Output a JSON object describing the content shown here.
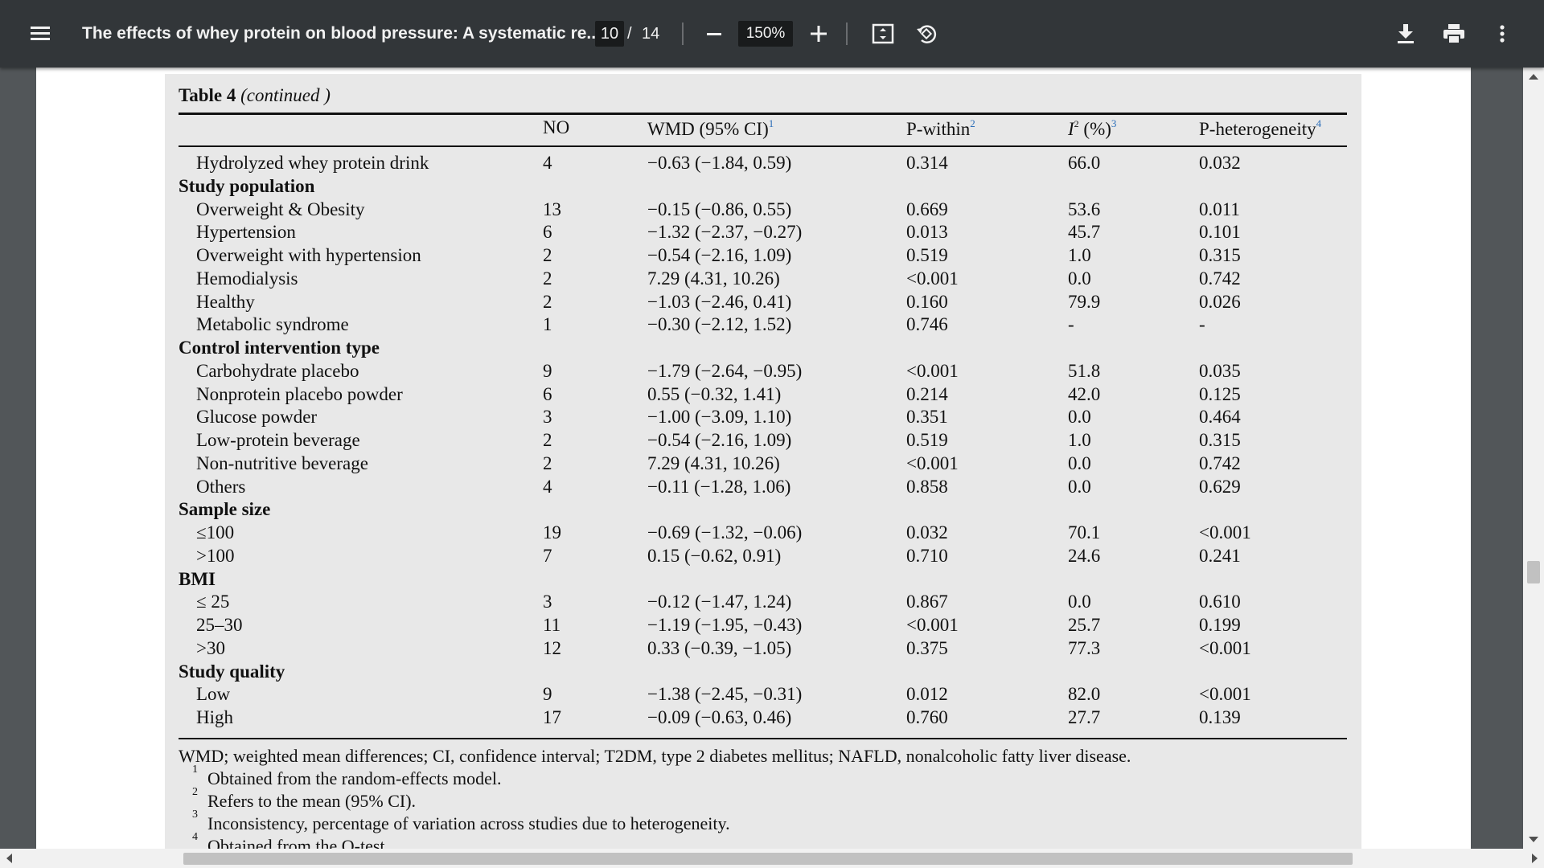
{
  "toolbar": {
    "title": "The effects of whey protein on blood pressure: A systematic re...",
    "page_current": "10",
    "page_separator": "/",
    "page_total": "14",
    "zoom": "150%",
    "icons": [
      "menu-icon",
      "zoom-out-icon",
      "zoom-in-icon",
      "fit-page-icon",
      "rotate-icon",
      "download-icon",
      "print-icon",
      "more-vert-icon"
    ]
  },
  "table": {
    "caption_bold": "Table 4",
    "caption_italic": "(continued )",
    "headers": {
      "no": "NO",
      "wmd": "WMD (95% CI)",
      "wmd_sup": "1",
      "pwithin": "P-within",
      "pwithin_sup": "2",
      "i2_base": "I",
      "i2_power": "2",
      "i2_unit": " (%)",
      "i2_sup": "3",
      "phet": "P-heterogeneity",
      "phet_sup": "4"
    },
    "rows": [
      {
        "label": "Hydrolyzed whey protein drink",
        "no": "4",
        "wmd": "−0.63 (−1.84, 0.59)",
        "pwithin": "0.314",
        "i2": "66.0",
        "phet": "0.032"
      },
      {
        "group": "Study population"
      },
      {
        "label": "Overweight & Obesity",
        "no": "13",
        "wmd": "−0.15 (−0.86, 0.55)",
        "pwithin": "0.669",
        "i2": "53.6",
        "phet": "0.011"
      },
      {
        "label": "Hypertension",
        "no": "6",
        "wmd": "−1.32 (−2.37, −0.27)",
        "pwithin": "0.013",
        "i2": "45.7",
        "phet": "0.101"
      },
      {
        "label": "Overweight with hypertension",
        "no": "2",
        "wmd": "−0.54 (−2.16, 1.09)",
        "pwithin": "0.519",
        "i2": "1.0",
        "phet": "0.315"
      },
      {
        "label": "Hemodialysis",
        "no": "2",
        "wmd": "7.29 (4.31, 10.26)",
        "pwithin": "<0.001",
        "i2": "0.0",
        "phet": "0.742"
      },
      {
        "label": "Healthy",
        "no": "2",
        "wmd": "−1.03 (−2.46, 0.41)",
        "pwithin": "0.160",
        "i2": "79.9",
        "phet": "0.026"
      },
      {
        "label": "Metabolic syndrome",
        "no": "1",
        "wmd": "−0.30 (−2.12, 1.52)",
        "pwithin": "0.746",
        "i2": "-",
        "phet": "-"
      },
      {
        "group": "Control intervention type"
      },
      {
        "label": "Carbohydrate placebo",
        "no": "9",
        "wmd": "−1.79 (−2.64, −0.95)",
        "pwithin": "<0.001",
        "i2": "51.8",
        "phet": "0.035"
      },
      {
        "label": "Nonprotein placebo powder",
        "no": "6",
        "wmd": "0.55 (−0.32, 1.41)",
        "pwithin": "0.214",
        "i2": "42.0",
        "phet": "0.125"
      },
      {
        "label": "Glucose powder",
        "no": "3",
        "wmd": "−1.00 (−3.09, 1.10)",
        "pwithin": "0.351",
        "i2": "0.0",
        "phet": "0.464"
      },
      {
        "label": "Low-protein beverage",
        "no": "2",
        "wmd": "−0.54 (−2.16, 1.09)",
        "pwithin": "0.519",
        "i2": "1.0",
        "phet": "0.315"
      },
      {
        "label": "Non-nutritive beverage",
        "no": "2",
        "wmd": "7.29 (4.31, 10.26)",
        "pwithin": "<0.001",
        "i2": "0.0",
        "phet": "0.742"
      },
      {
        "label": "Others",
        "no": "4",
        "wmd": "−0.11 (−1.28, 1.06)",
        "pwithin": "0.858",
        "i2": "0.0",
        "phet": "0.629"
      },
      {
        "group": "Sample size"
      },
      {
        "label": "≤100",
        "no": "19",
        "wmd": "−0.69 (−1.32, −0.06)",
        "pwithin": "0.032",
        "i2": "70.1",
        "phet": "<0.001"
      },
      {
        "label": ">100",
        "no": "7",
        "wmd": "0.15 (−0.62, 0.91)",
        "pwithin": "0.710",
        "i2": "24.6",
        "phet": "0.241"
      },
      {
        "group": "BMI"
      },
      {
        "label": "≤ 25",
        "no": "3",
        "wmd": "−0.12 (−1.47, 1.24)",
        "pwithin": "0.867",
        "i2": "0.0",
        "phet": "0.610"
      },
      {
        "label": "25–30",
        "no": "11",
        "wmd": "−1.19 (−1.95, −0.43)",
        "pwithin": "<0.001",
        "i2": "25.7",
        "phet": "0.199"
      },
      {
        "label": ">30",
        "no": "12",
        "wmd": "0.33 (−0.39, −1.05)",
        "pwithin": "0.375",
        "i2": "77.3",
        "phet": "<0.001"
      },
      {
        "group": "Study quality"
      },
      {
        "label": "Low",
        "no": "9",
        "wmd": "−1.38 (−2.45, −0.31)",
        "pwithin": "0.012",
        "i2": "82.0",
        "phet": "<0.001"
      },
      {
        "label": "High",
        "no": "17",
        "wmd": "−0.09 (−0.63, 0.46)",
        "pwithin": "0.760",
        "i2": "27.7",
        "phet": "0.139"
      }
    ],
    "abbreviations": "WMD; weighted mean differences; CI, confidence interval; T2DM, type 2 diabetes mellitus; NAFLD, nonalcoholic fatty liver disease.",
    "footnotes": [
      {
        "num": "1",
        "text": "Obtained from the random-effects model."
      },
      {
        "num": "2",
        "text": "Refers to the mean (95% CI)."
      },
      {
        "num": "3",
        "text": "Inconsistency, percentage of variation across studies due to heterogeneity."
      },
      {
        "num": "4",
        "text": "Obtained from the Q-test."
      }
    ]
  }
}
